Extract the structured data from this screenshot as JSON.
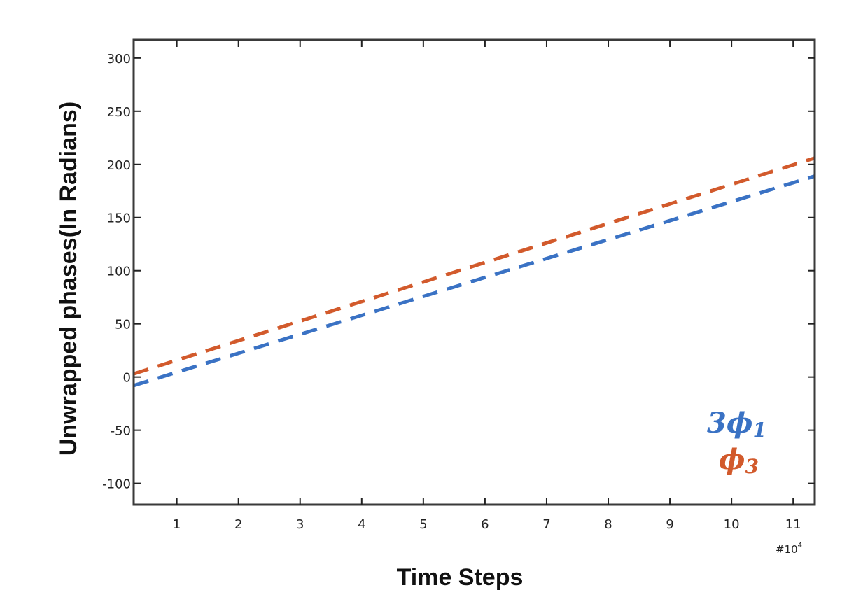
{
  "chart_data": {
    "type": "line",
    "xlabel": "Time Steps",
    "ylabel": "Unwrapped phases(In Radians)",
    "x_multiplier_label": "#10",
    "x_multiplier_exp": "4",
    "xlim": [
      0.3,
      11.35
    ],
    "ylim": [
      -120,
      317
    ],
    "xticks": [
      1,
      2,
      3,
      4,
      5,
      6,
      7,
      8,
      9,
      10,
      11
    ],
    "yticks": [
      -100,
      -50,
      0,
      50,
      100,
      150,
      200,
      250,
      300
    ],
    "grid": false,
    "legend_position": "bottom-right",
    "series": [
      {
        "name": "3ϕ1",
        "name_main": "3ϕ",
        "name_sub": "1",
        "color": "#3a72c4",
        "style": "dashed",
        "x": [
          0.3,
          11.35
        ],
        "y": [
          -8,
          189
        ]
      },
      {
        "name": "ϕ3",
        "name_main": "ϕ",
        "name_sub": "3",
        "color": "#d25a2c",
        "style": "dashed",
        "x": [
          0.3,
          11.35
        ],
        "y": [
          3,
          206
        ]
      }
    ]
  }
}
